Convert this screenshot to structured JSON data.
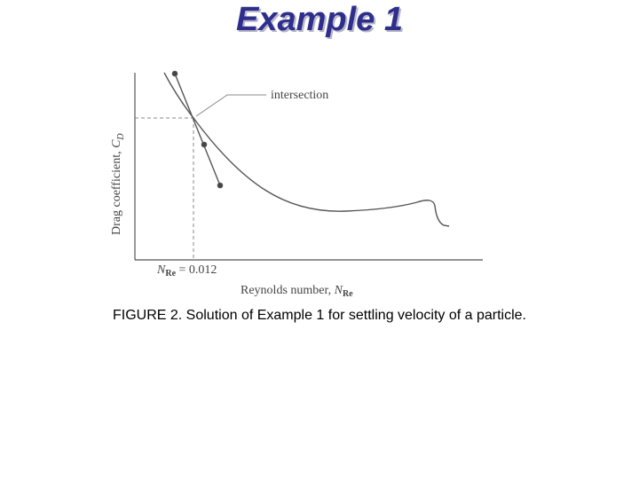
{
  "header": {
    "title": "Example 1"
  },
  "figure": {
    "annotation": "intersection",
    "y_axis_label": {
      "text": "Drag coefficient, ",
      "symbol": "C",
      "subscript": "D"
    },
    "x_axis_label": {
      "text": "Reynolds number, ",
      "symbol": "N",
      "subscript": "Re"
    },
    "marker_label": {
      "symbol": "N",
      "subscript": "Re",
      "text": " = 0.012"
    }
  },
  "caption": "FIGURE 2. Solution of Example 1 for settling velocity of a particle."
}
